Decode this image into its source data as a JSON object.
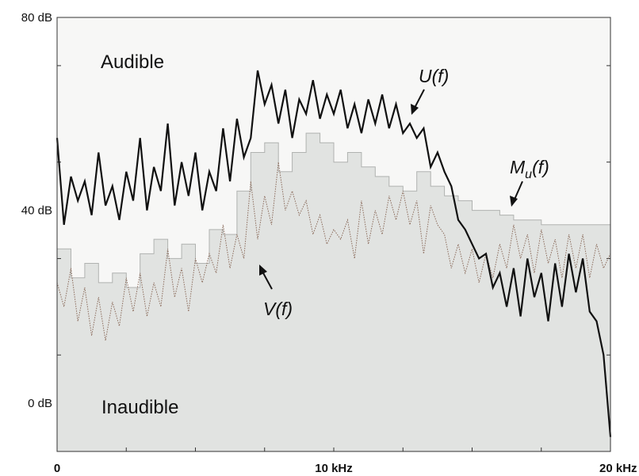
{
  "chart_data": {
    "type": "line",
    "xlim": [
      0,
      20
    ],
    "ylim": [
      -10,
      80
    ],
    "x_ticks": [
      {
        "value": 0,
        "label": "0"
      },
      {
        "value": 10,
        "label": "10 kHz"
      },
      {
        "value": 20,
        "label": "20 kHz"
      }
    ],
    "y_ticks": [
      {
        "value": 0,
        "label": "0 dB"
      },
      {
        "value": 40,
        "label": "40 dB"
      },
      {
        "value": 80,
        "label": "80 dB"
      }
    ],
    "regions": {
      "upper": "Audible",
      "lower": "Inaudible"
    },
    "colors": {
      "audible_bg": "#f7f7f6",
      "inaudible_fill": "#e1e3e1",
      "u_line": "#111111",
      "v_line": "#8a6a5a",
      "mask_edge": "#b0b2b0"
    },
    "series": [
      {
        "name": "U(f)",
        "x": [
          0,
          0.25,
          0.5,
          0.75,
          1,
          1.25,
          1.5,
          1.75,
          2,
          2.25,
          2.5,
          2.75,
          3,
          3.25,
          3.5,
          3.75,
          4,
          4.25,
          4.5,
          4.75,
          5,
          5.25,
          5.5,
          5.75,
          6,
          6.25,
          6.5,
          6.75,
          7,
          7.25,
          7.5,
          7.75,
          8,
          8.25,
          8.5,
          8.75,
          9,
          9.25,
          9.5,
          9.75,
          10,
          10.25,
          10.5,
          10.75,
          11,
          11.25,
          11.5,
          11.75,
          12,
          12.25,
          12.5,
          12.75,
          13,
          13.25,
          13.5,
          13.75,
          14,
          14.25,
          14.5,
          14.75,
          15,
          15.25,
          15.5,
          15.75,
          16,
          16.25,
          16.5,
          16.75,
          17,
          17.25,
          17.5,
          17.75,
          18,
          18.25,
          18.5,
          18.75,
          19,
          19.25,
          19.5,
          19.75,
          20
        ],
        "values": [
          55,
          37,
          47,
          42,
          46,
          39,
          52,
          41,
          45,
          38,
          48,
          42,
          55,
          40,
          49,
          44,
          58,
          41,
          50,
          43,
          52,
          40,
          48,
          44,
          57,
          46,
          59,
          51,
          55,
          69,
          62,
          66,
          58,
          65,
          55,
          63,
          60,
          67,
          59,
          64,
          60,
          65,
          57,
          62,
          56,
          63,
          58,
          64,
          57,
          62,
          56,
          58,
          55,
          57,
          49,
          52,
          48,
          45,
          38,
          36,
          33,
          30,
          31,
          24,
          27,
          20,
          28,
          18,
          30,
          22,
          27,
          17,
          29,
          20,
          31,
          23,
          30,
          19,
          17,
          10,
          -7
        ]
      },
      {
        "name": "V(f)",
        "x": [
          0,
          0.25,
          0.5,
          0.75,
          1,
          1.25,
          1.5,
          1.75,
          2,
          2.25,
          2.5,
          2.75,
          3,
          3.25,
          3.5,
          3.75,
          4,
          4.25,
          4.5,
          4.75,
          5,
          5.25,
          5.5,
          5.75,
          6,
          6.25,
          6.5,
          6.75,
          7,
          7.25,
          7.5,
          7.75,
          8,
          8.25,
          8.5,
          8.75,
          9,
          9.25,
          9.5,
          9.75,
          10,
          10.25,
          10.5,
          10.75,
          11,
          11.25,
          11.5,
          11.75,
          12,
          12.25,
          12.5,
          12.75,
          13,
          13.25,
          13.5,
          13.75,
          14,
          14.25,
          14.5,
          14.75,
          15,
          15.25,
          15.5,
          15.75,
          16,
          16.25,
          16.5,
          16.75,
          17,
          17.25,
          17.5,
          17.75,
          18,
          18.25,
          18.5,
          18.75,
          19,
          19.25,
          19.5,
          19.75,
          20
        ],
        "values": [
          25,
          20,
          28,
          17,
          24,
          14,
          22,
          13,
          21,
          16,
          26,
          19,
          27,
          18,
          25,
          20,
          32,
          22,
          28,
          19,
          30,
          25,
          31,
          27,
          37,
          28,
          35,
          30,
          46,
          34,
          43,
          37,
          50,
          40,
          44,
          39,
          42,
          35,
          39,
          33,
          36,
          34,
          38,
          30,
          42,
          33,
          40,
          35,
          43,
          38,
          44,
          37,
          42,
          31,
          41,
          37,
          35,
          28,
          33,
          27,
          32,
          25,
          31,
          26,
          33,
          28,
          37,
          30,
          35,
          27,
          36,
          29,
          34,
          26,
          35,
          28,
          35,
          26,
          33,
          28,
          31
        ]
      },
      {
        "name": "M_u(f)",
        "x": [
          0,
          0.5,
          1,
          1.5,
          2,
          2.5,
          3,
          3.5,
          4,
          4.5,
          5,
          5.5,
          6,
          6.5,
          7,
          7.5,
          8,
          8.5,
          9,
          9.5,
          10,
          10.5,
          11,
          11.5,
          12,
          12.5,
          13,
          13.5,
          14,
          14.5,
          15,
          15.5,
          16,
          16.5,
          17,
          17.5,
          18,
          18.5,
          19,
          19.5,
          20
        ],
        "values": [
          32,
          26,
          29,
          25,
          27,
          24,
          31,
          34,
          30,
          33,
          29,
          36,
          35,
          44,
          52,
          54,
          48,
          52,
          56,
          54,
          50,
          52,
          49,
          47,
          45,
          44,
          48,
          45,
          43,
          42,
          40,
          40,
          39,
          38,
          38,
          37,
          37,
          37,
          37,
          37,
          37
        ]
      }
    ],
    "annotations": [
      {
        "name": "U(f)",
        "prefix": "U(",
        "var": "f",
        "suffix": ")"
      },
      {
        "name": "V(f)",
        "prefix": "V(",
        "var": "f",
        "suffix": ")"
      },
      {
        "name": "M_u(f)",
        "prefix": "M",
        "sub": "u",
        "mid": "(",
        "var": "f",
        "suffix": ")"
      }
    ]
  }
}
